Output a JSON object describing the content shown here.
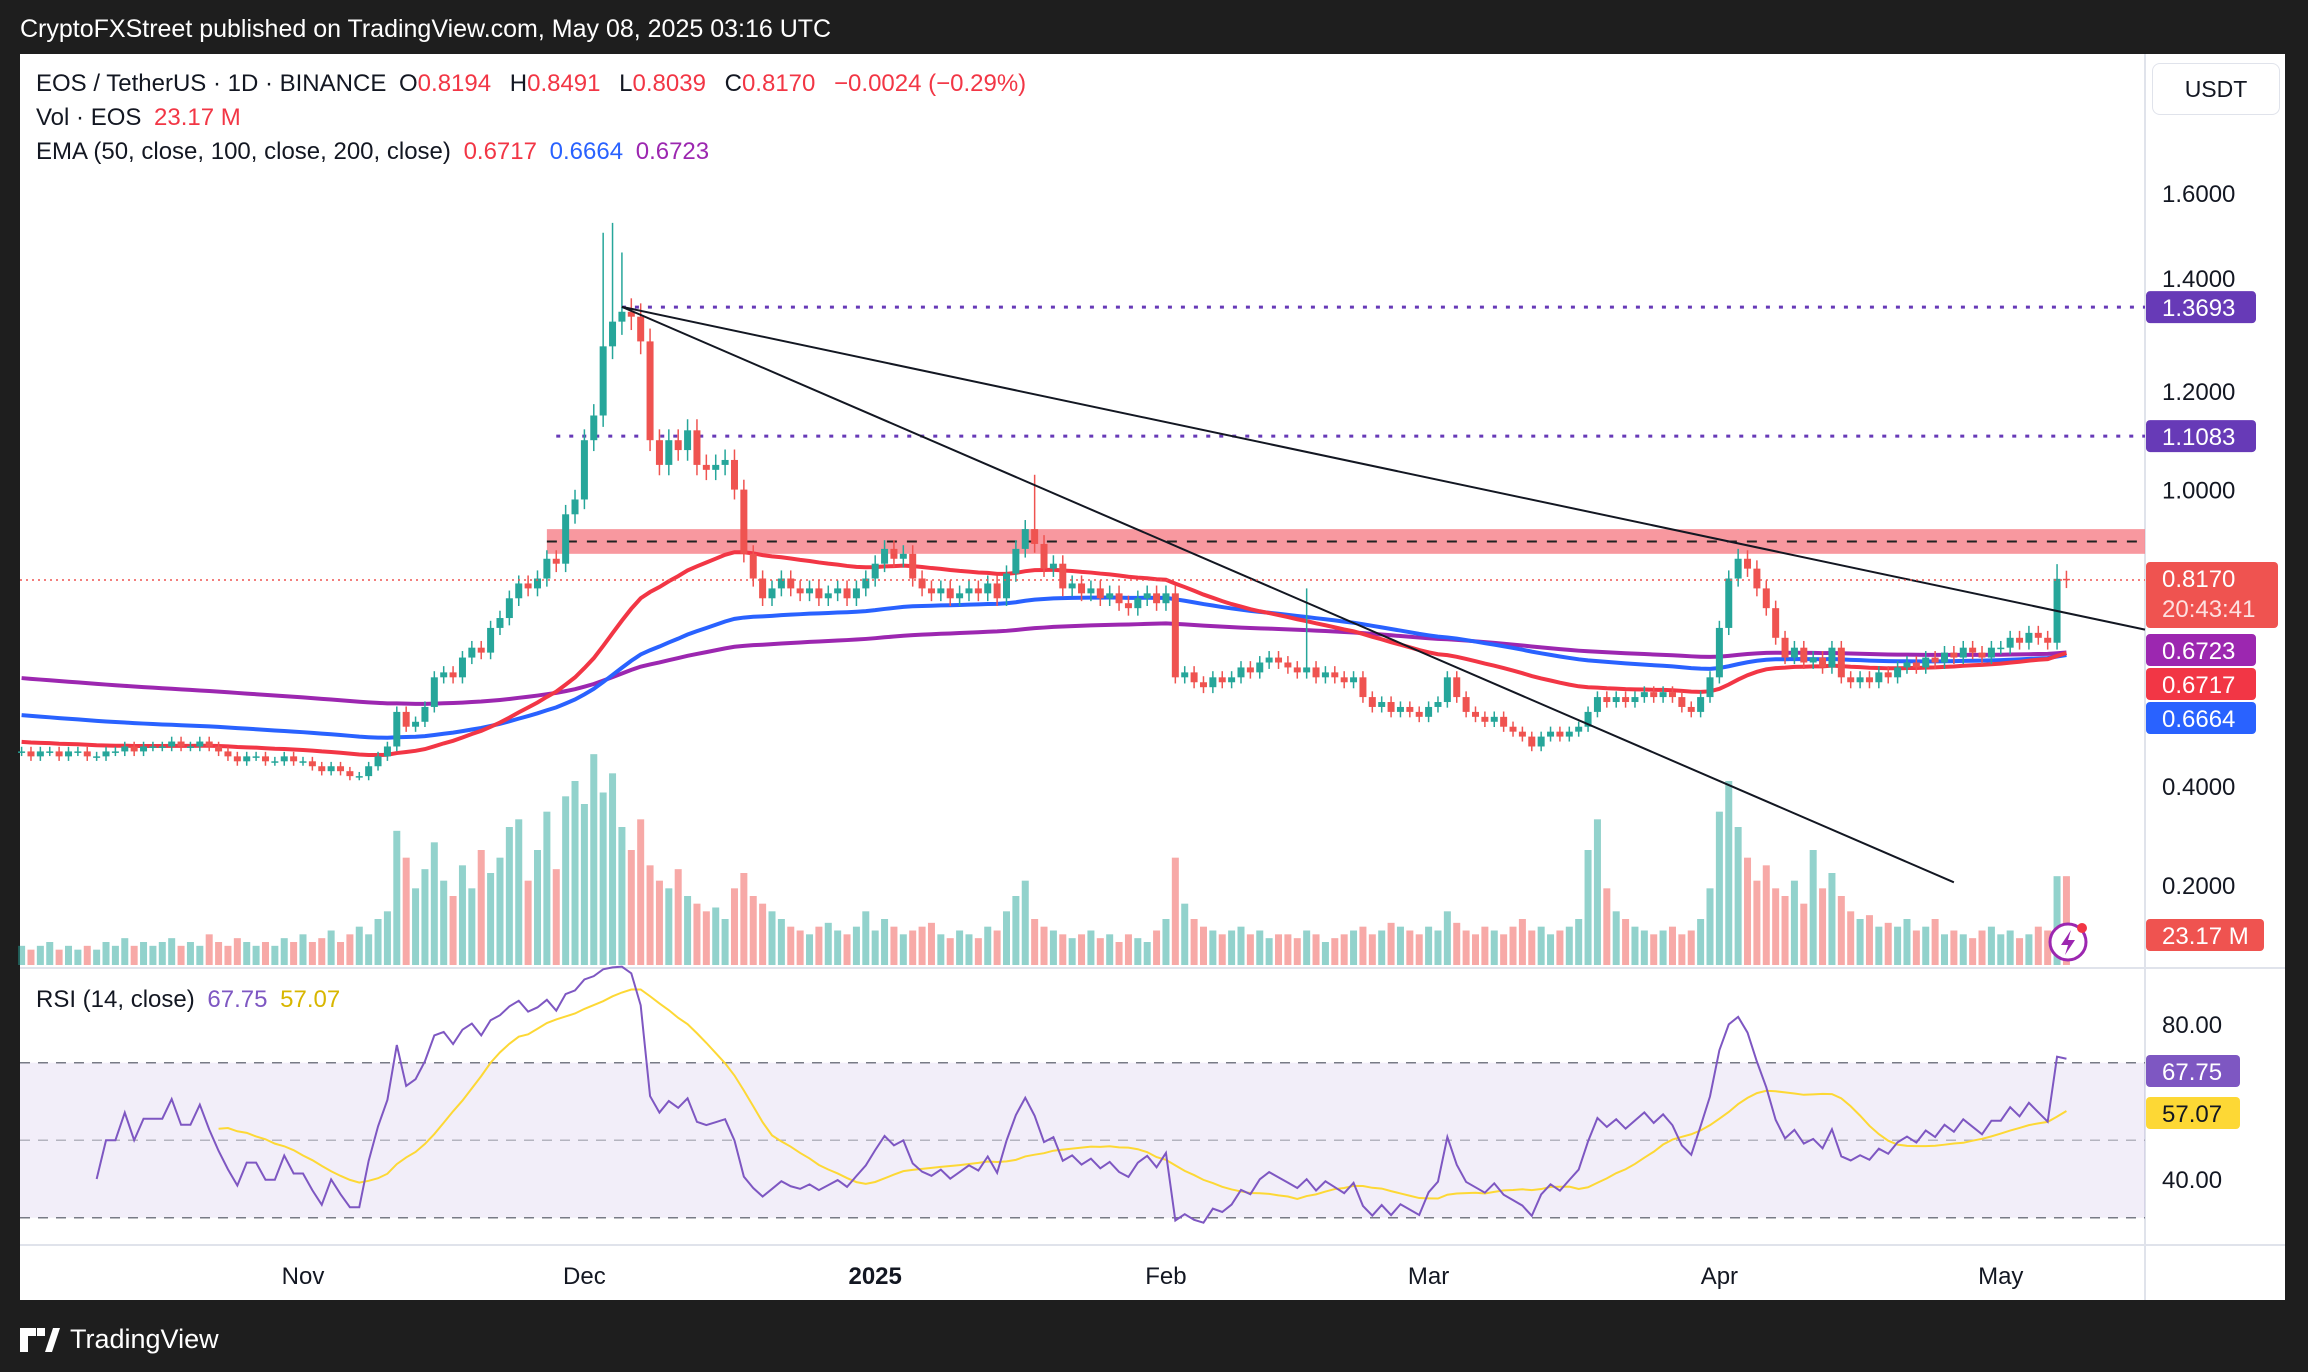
{
  "header": {
    "title": "CryptoFXStreet published on TradingView.com, May 08, 2025 03:16 UTC"
  },
  "legend": {
    "symbol": "EOS / TetherUS · 1D · BINANCE",
    "o_label": "O",
    "o": "0.8194",
    "h_label": "H",
    "h": "0.8491",
    "l_label": "L",
    "l": "0.8039",
    "c_label": "C",
    "c": "0.8170",
    "change": "−0.0024 (−0.29%)",
    "vol_label": "Vol · EOS",
    "vol": "23.17 M",
    "ema_label": "EMA (50, close, 100, close, 200, close)",
    "ema50": "0.6717",
    "ema100": "0.6664",
    "ema200": "0.6723",
    "rsi_label": "RSI (14, close)",
    "rsi": "67.75",
    "rsi_ma": "57.07"
  },
  "currency": "USDT",
  "countdown": "20:43:41",
  "footer": {
    "brand": "TradingView"
  },
  "colors": {
    "up": "#26a69a",
    "down": "#ef5350",
    "ema50": "#f23645",
    "ema100": "#2962ff",
    "ema200": "#9c27b0",
    "level": "#673ab7",
    "rsi": "#7e57c2",
    "rsi_ma": "#fdd835",
    "zone": "#f7868e"
  },
  "chart_data": {
    "type": "candlestick",
    "title": "EOS / TetherUS · 1D · BINANCE",
    "start_date": "2024-10-02",
    "closes": [
      0.47,
      0.46,
      0.47,
      0.47,
      0.46,
      0.47,
      0.47,
      0.46,
      0.46,
      0.47,
      0.47,
      0.48,
      0.47,
      0.48,
      0.48,
      0.48,
      0.49,
      0.48,
      0.48,
      0.49,
      0.48,
      0.47,
      0.46,
      0.45,
      0.46,
      0.46,
      0.45,
      0.45,
      0.46,
      0.45,
      0.45,
      0.44,
      0.43,
      0.44,
      0.43,
      0.42,
      0.42,
      0.44,
      0.46,
      0.48,
      0.55,
      0.52,
      0.53,
      0.56,
      0.62,
      0.63,
      0.62,
      0.66,
      0.68,
      0.67,
      0.72,
      0.74,
      0.78,
      0.81,
      0.8,
      0.82,
      0.86,
      0.85,
      0.95,
      0.98,
      1.1,
      1.15,
      1.29,
      1.34,
      1.36,
      1.35,
      1.3,
      1.1,
      1.05,
      1.1,
      1.08,
      1.12,
      1.05,
      1.04,
      1.05,
      1.06,
      1.0,
      0.87,
      0.82,
      0.78,
      0.8,
      0.82,
      0.8,
      0.79,
      0.8,
      0.78,
      0.79,
      0.8,
      0.78,
      0.8,
      0.82,
      0.85,
      0.88,
      0.86,
      0.87,
      0.82,
      0.8,
      0.79,
      0.8,
      0.78,
      0.79,
      0.8,
      0.79,
      0.81,
      0.78,
      0.83,
      0.88,
      0.92,
      0.89,
      0.84,
      0.85,
      0.8,
      0.81,
      0.79,
      0.8,
      0.78,
      0.79,
      0.77,
      0.76,
      0.78,
      0.79,
      0.77,
      0.79,
      0.62,
      0.63,
      0.61,
      0.6,
      0.62,
      0.61,
      0.62,
      0.64,
      0.63,
      0.65,
      0.66,
      0.65,
      0.64,
      0.63,
      0.64,
      0.62,
      0.63,
      0.62,
      0.61,
      0.62,
      0.58,
      0.56,
      0.57,
      0.55,
      0.56,
      0.55,
      0.54,
      0.56,
      0.57,
      0.62,
      0.58,
      0.55,
      0.54,
      0.53,
      0.54,
      0.52,
      0.51,
      0.5,
      0.48,
      0.5,
      0.51,
      0.5,
      0.51,
      0.52,
      0.55,
      0.58,
      0.57,
      0.58,
      0.57,
      0.58,
      0.59,
      0.58,
      0.59,
      0.58,
      0.56,
      0.55,
      0.58,
      0.62,
      0.72,
      0.82,
      0.86,
      0.84,
      0.8,
      0.76,
      0.7,
      0.66,
      0.68,
      0.65,
      0.66,
      0.64,
      0.68,
      0.62,
      0.61,
      0.62,
      0.61,
      0.63,
      0.62,
      0.64,
      0.65,
      0.64,
      0.66,
      0.65,
      0.67,
      0.66,
      0.68,
      0.67,
      0.66,
      0.68,
      0.68,
      0.7,
      0.69,
      0.71,
      0.7,
      0.69,
      0.8194,
      0.817
    ],
    "high_overrides": {
      "62": 1.52,
      "63": 1.54,
      "64": 1.48,
      "108": 1.03,
      "137": 0.8,
      "183": 0.88,
      "217": 0.8491
    },
    "volumes_m": [
      5,
      4,
      5,
      6,
      4,
      5,
      4,
      5,
      4,
      6,
      5,
      7,
      5,
      6,
      5,
      6,
      7,
      5,
      6,
      5,
      8,
      6,
      5,
      7,
      6,
      5,
      6,
      5,
      7,
      6,
      8,
      6,
      7,
      9,
      6,
      8,
      10,
      8,
      12,
      14,
      35,
      28,
      20,
      25,
      32,
      22,
      18,
      26,
      20,
      30,
      24,
      28,
      36,
      38,
      22,
      30,
      40,
      25,
      44,
      48,
      42,
      55,
      45,
      50,
      36,
      30,
      38,
      26,
      22,
      20,
      25,
      18,
      16,
      14,
      15,
      12,
      20,
      24,
      18,
      16,
      14,
      12,
      10,
      9,
      8,
      10,
      11,
      9,
      8,
      10,
      14,
      9,
      12,
      10,
      8,
      9,
      10,
      11,
      8,
      7,
      9,
      8,
      7,
      10,
      9,
      14,
      18,
      22,
      12,
      10,
      9,
      8,
      7,
      8,
      9,
      7,
      8,
      6,
      8,
      7,
      6,
      9,
      12,
      28,
      16,
      12,
      10,
      9,
      8,
      9,
      10,
      8,
      9,
      7,
      8,
      8,
      7,
      9,
      8,
      6,
      7,
      8,
      9,
      10,
      8,
      9,
      11,
      10,
      9,
      8,
      10,
      9,
      14,
      11,
      9,
      8,
      10,
      9,
      8,
      10,
      12,
      9,
      10,
      8,
      9,
      10,
      12,
      30,
      38,
      20,
      14,
      12,
      10,
      9,
      8,
      9,
      10,
      8,
      9,
      12,
      20,
      40,
      48,
      36,
      28,
      22,
      26,
      20,
      18,
      22,
      16,
      30,
      20,
      24,
      18,
      14,
      12,
      13,
      10,
      11,
      10,
      12,
      9,
      10,
      12,
      8,
      9,
      8,
      7,
      9,
      10,
      8,
      9,
      7,
      8,
      10,
      9,
      23.17,
      23.17
    ],
    "ema_seeds": {
      "ema50": 0.49,
      "ema100": 0.545,
      "ema200": 0.62
    },
    "y_ticks": [
      "1.6000",
      "1.4000",
      "1.2000",
      "1.0000",
      "0.4000",
      "0.2000"
    ],
    "y_tick_values": [
      1.6,
      1.4,
      1.2,
      1.0,
      0.4,
      0.2
    ],
    "price_labels": [
      {
        "value": 1.3693,
        "text": "1.3693",
        "color": "#673ab7"
      },
      {
        "value": 1.1083,
        "text": "1.1083",
        "color": "#673ab7"
      },
      {
        "value": 0.6723,
        "text": "0.6723",
        "color": "#9c27b0"
      },
      {
        "value": 0.6717,
        "text": "0.6717",
        "color": "#f23645"
      },
      {
        "value": 0.6664,
        "text": "0.6664",
        "color": "#2962ff"
      }
    ],
    "levels": [
      {
        "value": 1.3693,
        "from_day": 64
      },
      {
        "value": 1.1083,
        "from_day": 57
      }
    ],
    "resistance_zone": {
      "low": 0.87,
      "high": 0.92,
      "mid": 0.895,
      "from_day": 56
    },
    "trendlines": [
      {
        "from": {
          "day": 64,
          "price": 1.37
        },
        "to": {
          "day": 206,
          "price": 0.205
        }
      },
      {
        "from": {
          "day": 64,
          "price": 1.37
        },
        "to": {
          "day": 228,
          "price": 0.71
        }
      }
    ],
    "rsi_ticks": [
      "80.00",
      "40.00"
    ],
    "rsi_tick_values": [
      80,
      40
    ],
    "rsi_bands": [
      70,
      50,
      30
    ],
    "x_ticks": [
      {
        "label": "Nov",
        "day": 30
      },
      {
        "label": "Dec",
        "day": 60
      },
      {
        "label": "2025",
        "day": 91,
        "bold": true
      },
      {
        "label": "Feb",
        "day": 122
      },
      {
        "label": "Mar",
        "day": 150
      },
      {
        "label": "Apr",
        "day": 181
      },
      {
        "label": "May",
        "day": 211
      }
    ]
  }
}
